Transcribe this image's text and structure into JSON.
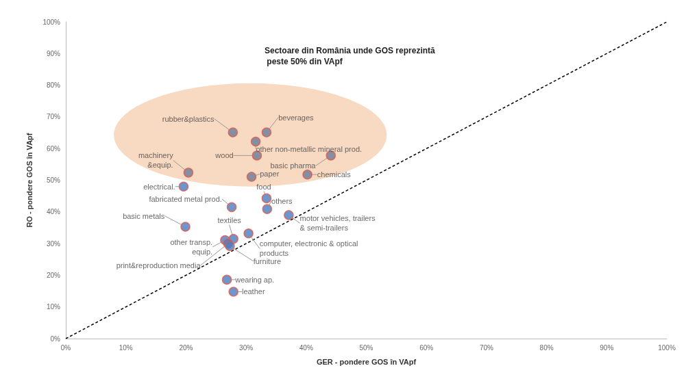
{
  "chart_data": {
    "type": "scatter",
    "xlabel": "GER - pondere GOS în VApf",
    "ylabel": "RO - pondere GOS în VApf",
    "xlim": [
      0,
      100
    ],
    "ylim": [
      0,
      100
    ],
    "xticks": [
      {
        "value": 0,
        "label": "0%"
      },
      {
        "value": 10,
        "label": "10%"
      },
      {
        "value": 20,
        "label": "20%"
      },
      {
        "value": 30,
        "label": "30%"
      },
      {
        "value": 40,
        "label": "40%"
      },
      {
        "value": 50,
        "label": "50%"
      },
      {
        "value": 60,
        "label": "60%"
      },
      {
        "value": 70,
        "label": "70%"
      },
      {
        "value": 80,
        "label": "80%"
      },
      {
        "value": 90,
        "label": "90%"
      },
      {
        "value": 100,
        "label": "100%"
      }
    ],
    "yticks": [
      {
        "value": 0,
        "label": "0%"
      },
      {
        "value": 10,
        "label": "10%"
      },
      {
        "value": 20,
        "label": "20%"
      },
      {
        "value": 30,
        "label": "30%"
      },
      {
        "value": 40,
        "label": "40%"
      },
      {
        "value": 50,
        "label": "50%"
      },
      {
        "value": 60,
        "label": "60%"
      },
      {
        "value": 70,
        "label": "70%"
      },
      {
        "value": 80,
        "label": "80%"
      },
      {
        "value": 90,
        "label": "90%"
      },
      {
        "value": 100,
        "label": "100%"
      }
    ],
    "grid": false,
    "marker": "circle",
    "series": [
      {
        "x": [
          27.8,
          33.4,
          31.6,
          31.8,
          20.4,
          30.9,
          40.2,
          44.1,
          19.6,
          33.4,
          27.6,
          33.5,
          37.1,
          19.9,
          27.9,
          30.4,
          26.5,
          27.0,
          27.3,
          26.8,
          27.9
        ],
        "values": [
          65.1,
          65.1,
          62.2,
          57.8,
          52.4,
          51.1,
          51.8,
          57.8,
          48.0,
          44.3,
          41.5,
          40.9,
          39.0,
          35.3,
          31.5,
          33.2,
          31.1,
          30.0,
          29.2,
          18.6,
          14.8
        ],
        "colors": [
          "#6a7a9a",
          "#6a7a9a",
          "#6a7a9a",
          "#6a7a9a",
          "#6a7a9a",
          "#6a7a9a",
          "#6a7a9a",
          "#6a7a9a",
          "#4a7cc0",
          "#4a7cc0",
          "#4a7cc0",
          "#4a7cc0",
          "#4a7cc0",
          "#4a7cc0",
          "#4a7cc0",
          "#4a7cc0",
          "#4a7cc0",
          "#4a7cc0",
          "#4a7cc0",
          "#4a7cc0",
          "#4a7cc0"
        ]
      },
      {
        "type": "line",
        "x": [
          0,
          100
        ],
        "values": [
          0,
          100
        ],
        "color": "#000000",
        "line_style": "dashed",
        "marker": "none"
      }
    ],
    "annotations": [
      {
        "text": "rubber&plastics",
        "x": 27.8,
        "y": 65.1
      },
      {
        "text": "beverages",
        "x": 33.4,
        "y": 65.1
      },
      {
        "text": "other non-metallic mineral prod.",
        "x": 31.6,
        "y": 62.2
      },
      {
        "text": "wood",
        "x": 31.8,
        "y": 57.8
      },
      {
        "text": "machinery\n&equip.",
        "x": 20.4,
        "y": 52.4
      },
      {
        "text": "paper",
        "x": 30.9,
        "y": 51.1
      },
      {
        "text": "chemicals",
        "x": 40.2,
        "y": 51.8
      },
      {
        "text": "basic pharma",
        "x": 44.1,
        "y": 57.8
      },
      {
        "text": "electrical.",
        "x": 19.6,
        "y": 48.0
      },
      {
        "text": "food",
        "x": 33.4,
        "y": 44.3
      },
      {
        "text": "fabricated metal prod.",
        "x": 27.6,
        "y": 41.5
      },
      {
        "text": "others",
        "x": 33.5,
        "y": 40.9
      },
      {
        "text": "motor vehicles, trailers\n& semi-trailers",
        "x": 37.1,
        "y": 39.0
      },
      {
        "text": "basic metals",
        "x": 19.9,
        "y": 35.3
      },
      {
        "text": "textiles",
        "x": 27.9,
        "y": 31.5
      },
      {
        "text": "computer, electronic & optical\nproducts",
        "x": 30.4,
        "y": 33.2
      },
      {
        "text": "other transp.\nequip.",
        "x": 26.5,
        "y": 31.1
      },
      {
        "text": "print&reproduction media",
        "x": 27.0,
        "y": 30.0
      },
      {
        "text": "furniture",
        "x": 27.3,
        "y": 29.2
      },
      {
        "text": "wearing ap.",
        "x": 26.8,
        "y": 18.6
      },
      {
        "text": "leather",
        "x": 27.9,
        "y": 14.8
      },
      "Sectoare din România unde GOS reprezintă\n peste 50% din VApf"
    ]
  }
}
